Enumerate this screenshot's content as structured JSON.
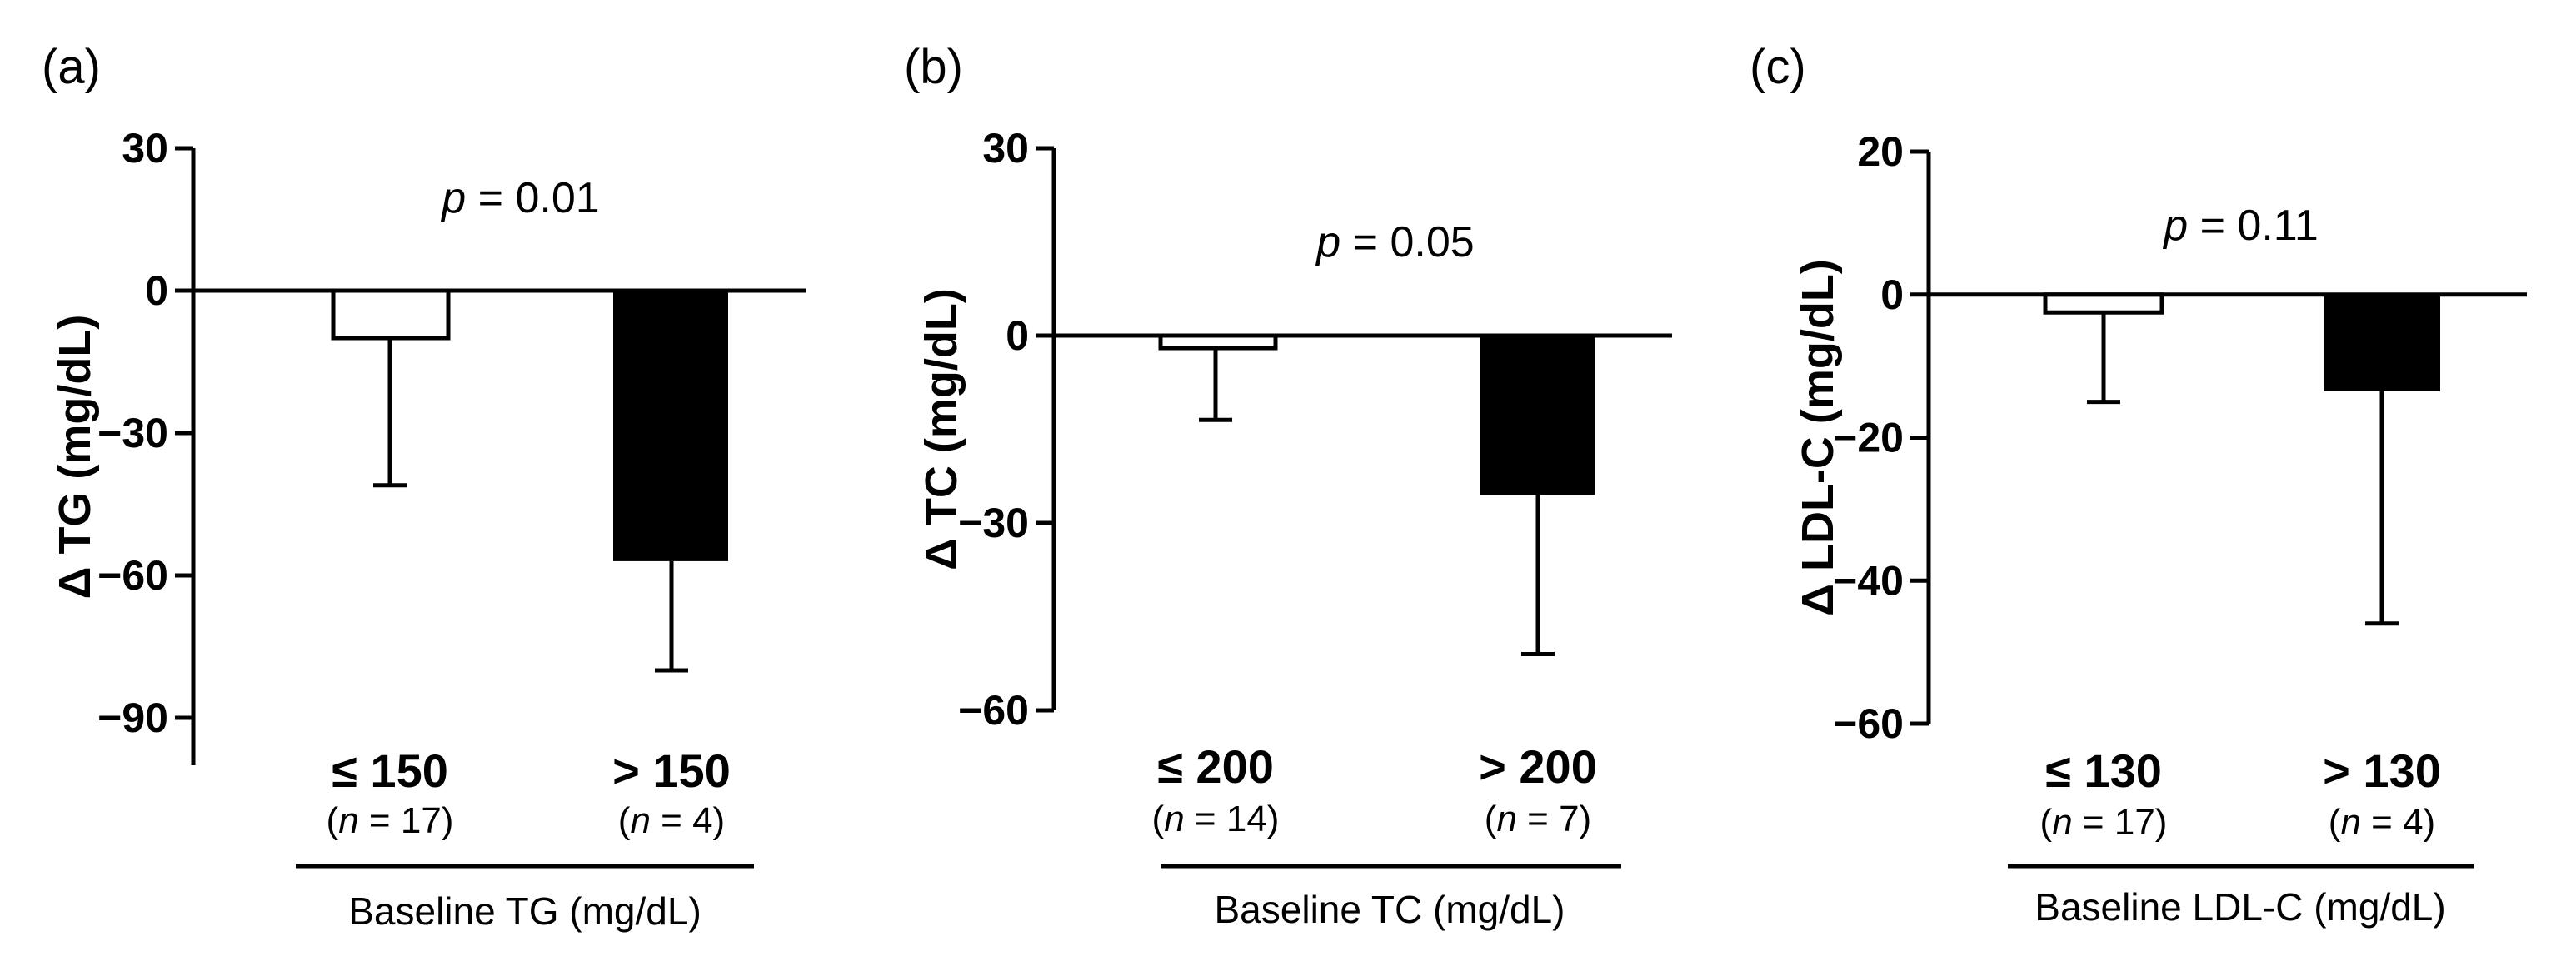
{
  "figure": {
    "panels": [
      "(a)",
      "(b)",
      "(c)"
    ],
    "p_prefix": "p",
    "n_prefix": "n"
  },
  "chart_data": [
    {
      "type": "bar",
      "panel": "(a)",
      "ylabel": "Δ TG (mg/dL)",
      "xlabel": "Baseline TG (mg/dL)",
      "ylim": [
        -100,
        30
      ],
      "yticks": [
        30,
        0,
        -30,
        -60,
        -90
      ],
      "tick_labels": [
        "30",
        "0",
        "−30",
        "−60",
        "−90"
      ],
      "categories": [
        "≤ 150",
        "> 150"
      ],
      "n_labels": [
        "= 17)",
        "= 4)"
      ],
      "values": [
        -10,
        -57
      ],
      "error_low": [
        -41,
        -80
      ],
      "colors": [
        "#ffffff",
        "#000000"
      ],
      "p_value": "= 0.01"
    },
    {
      "type": "bar",
      "panel": "(b)",
      "ylabel": "Δ TC (mg/dL)",
      "xlabel": "Baseline TC (mg/dL)",
      "ylim": [
        -60,
        30
      ],
      "yticks": [
        30,
        0,
        -30,
        -60
      ],
      "tick_labels": [
        "30",
        "0",
        "−30",
        "−60"
      ],
      "categories": [
        "≤ 200",
        "> 200"
      ],
      "n_labels": [
        "= 14)",
        "= 7)"
      ],
      "values": [
        -2,
        -25.5
      ],
      "error_low": [
        -13.5,
        -51
      ],
      "colors": [
        "#ffffff",
        "#000000"
      ],
      "p_value": "= 0.05"
    },
    {
      "type": "bar",
      "panel": "(c)",
      "ylabel": "Δ LDL-C (mg/dL)",
      "xlabel": "Baseline LDL-C (mg/dL)",
      "ylim": [
        -60,
        20
      ],
      "yticks": [
        20,
        0,
        -20,
        -40,
        -60
      ],
      "tick_labels": [
        "20",
        "0",
        "−20",
        "−40",
        "−60"
      ],
      "categories": [
        "≤ 130",
        "> 130"
      ],
      "n_labels": [
        "= 17)",
        "= 4)"
      ],
      "values": [
        -2.5,
        -13.5
      ],
      "error_low": [
        -15,
        -46
      ],
      "colors": [
        "#ffffff",
        "#000000"
      ],
      "p_value": "= 0.11"
    }
  ]
}
